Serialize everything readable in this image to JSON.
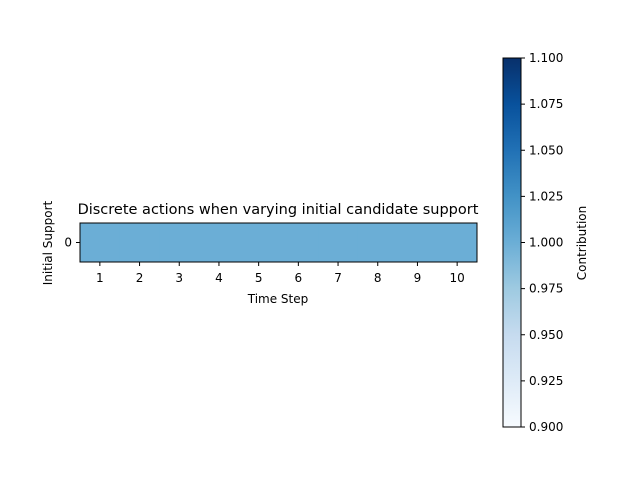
{
  "chart_data": {
    "type": "heatmap",
    "title": "Discrete actions when varying initial candidate support",
    "xlabel": "Time Step",
    "ylabel": "Initial Support",
    "x_categories": [
      "1",
      "2",
      "3",
      "4",
      "5",
      "6",
      "7",
      "8",
      "9",
      "10"
    ],
    "y_categories": [
      "0"
    ],
    "values": [
      [
        1,
        1,
        1,
        1,
        1,
        1,
        1,
        1,
        1,
        1
      ]
    ],
    "colormap": "Blues",
    "colorbar": {
      "label": "Contribution",
      "range": [
        0.9,
        1.1
      ],
      "ticks": [
        "0.900",
        "0.925",
        "0.950",
        "0.975",
        "1.000",
        "1.025",
        "1.050",
        "1.075",
        "1.100"
      ]
    },
    "cell_color": "#6baed6",
    "colormap_low": "#f7fbff",
    "colormap_high": "#08306b"
  }
}
